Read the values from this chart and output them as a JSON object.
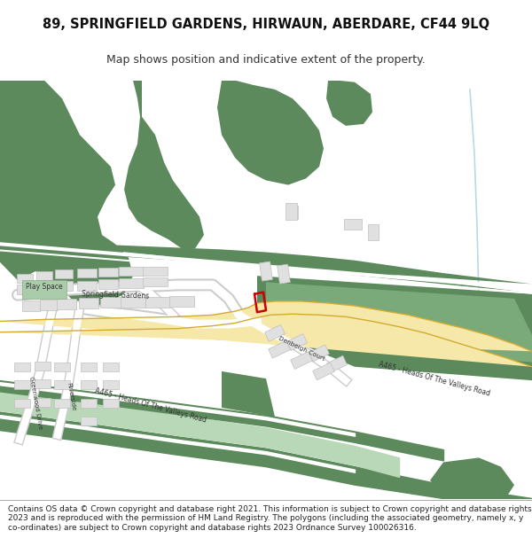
{
  "title_line1": "89, SPRINGFIELD GARDENS, HIRWAUN, ABERDARE, CF44 9LQ",
  "title_line2": "Map shows position and indicative extent of the property.",
  "footer_text": "Contains OS data © Crown copyright and database right 2021. This information is subject to Crown copyright and database rights 2023 and is reproduced with the permission of HM Land Registry. The polygons (including the associated geometry, namely x, y co-ordinates) are subject to Crown copyright and database rights 2023 Ordnance Survey 100026316.",
  "bg_color": "#ffffff",
  "green_dark": "#5c8a5c",
  "green_light": "#7aaa7a",
  "green_pale": "#b8d8b8",
  "road_yellow": "#f5e8a8",
  "road_border": "#d4aa30",
  "building_fill": "#e0e0e0",
  "building_stroke": "#c0c0c0",
  "red_outline": "#cc0000",
  "text_dark": "#333333"
}
